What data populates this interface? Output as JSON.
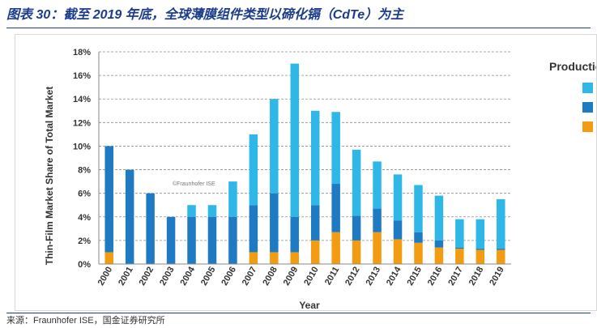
{
  "header": {
    "title": "图表 30：截至 2019 年底，全球薄膜组件类型以碲化镉（CdTe）为主"
  },
  "footer": {
    "source": "来源：Fraunhofer ISE，国金证券研究所"
  },
  "chart_data": {
    "type": "bar",
    "stacked": true,
    "categories": [
      "2000",
      "2001",
      "2002",
      "2003",
      "2004",
      "2005",
      "2006",
      "2007",
      "2008",
      "2009",
      "2010",
      "2011",
      "2012",
      "2013",
      "2014",
      "2015",
      "2016",
      "2017",
      "2018",
      "2019"
    ],
    "series": [
      {
        "color": "#f39c12",
        "values": [
          1.0,
          0,
          0,
          0,
          0,
          0,
          0,
          1.0,
          1.0,
          1.0,
          2.0,
          2.7,
          2.0,
          2.7,
          2.1,
          1.8,
          1.4,
          1.3,
          1.2,
          1.2
        ]
      },
      {
        "color": "#1f7ac4",
        "values": [
          9.0,
          8.0,
          6.0,
          4.0,
          4.0,
          4.0,
          4.0,
          4.0,
          5.0,
          3.0,
          3.0,
          4.1,
          2.1,
          2.0,
          1.6,
          0.9,
          0.6,
          0.1,
          0.1,
          0.1
        ]
      },
      {
        "color": "#2fb7e8",
        "values": [
          0,
          0,
          0,
          0,
          1.0,
          1.0,
          3.0,
          6.0,
          8.0,
          13.0,
          8.0,
          6.1,
          5.6,
          4.0,
          3.9,
          4.0,
          3.8,
          2.4,
          2.5,
          4.2
        ]
      }
    ],
    "xlabel": "Year",
    "ylabel": "Thin-Film Market Share of Total Market",
    "ylim": [
      0,
      18
    ],
    "yticks": [
      0,
      2,
      4,
      6,
      8,
      10,
      12,
      14,
      16,
      18
    ],
    "ytick_labels": [
      "0%",
      "2%",
      "4%",
      "6%",
      "8%",
      "10%",
      "12%",
      "14%",
      "16%",
      "18%"
    ],
    "grid": true,
    "legend": {
      "title": "Productio",
      "placement": "right"
    },
    "watermark": "©Fraunhofer ISE"
  }
}
